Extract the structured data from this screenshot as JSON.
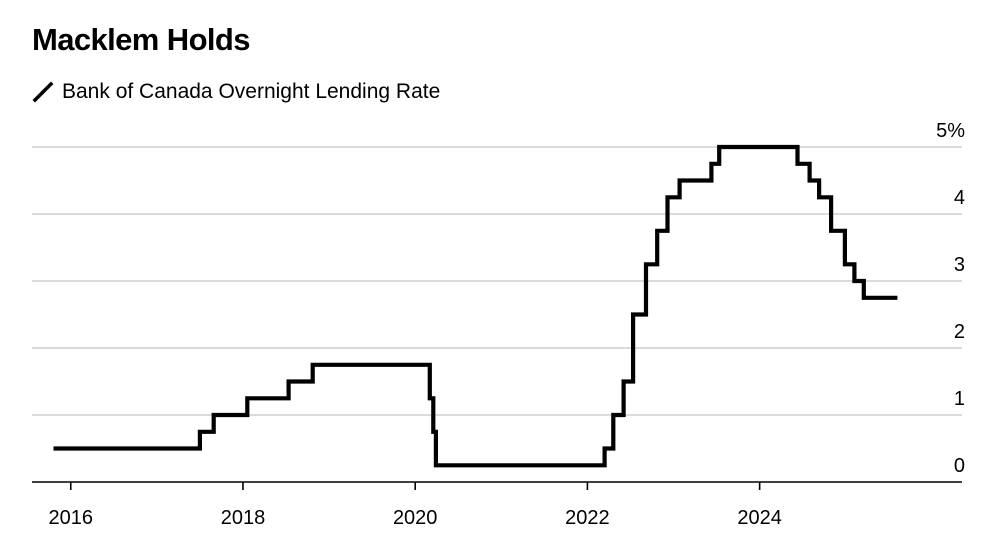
{
  "chart_data": {
    "type": "line",
    "title": "Macklem Holds",
    "series": [
      {
        "name": "Bank of Canada Overnight Lending Rate",
        "color": "#000000",
        "points": [
          [
            2015.8,
            0.5
          ],
          [
            2017.5,
            0.5
          ],
          [
            2017.5,
            0.75
          ],
          [
            2017.66,
            0.75
          ],
          [
            2017.66,
            1.0
          ],
          [
            2018.05,
            1.0
          ],
          [
            2018.05,
            1.25
          ],
          [
            2018.53,
            1.25
          ],
          [
            2018.53,
            1.5
          ],
          [
            2018.81,
            1.5
          ],
          [
            2018.81,
            1.75
          ],
          [
            2020.17,
            1.75
          ],
          [
            2020.17,
            1.25
          ],
          [
            2020.21,
            1.25
          ],
          [
            2020.21,
            0.75
          ],
          [
            2020.24,
            0.75
          ],
          [
            2020.24,
            0.25
          ],
          [
            2022.2,
            0.25
          ],
          [
            2022.2,
            0.5
          ],
          [
            2022.3,
            0.5
          ],
          [
            2022.3,
            1.0
          ],
          [
            2022.42,
            1.0
          ],
          [
            2022.42,
            1.5
          ],
          [
            2022.53,
            1.5
          ],
          [
            2022.53,
            2.5
          ],
          [
            2022.68,
            2.5
          ],
          [
            2022.68,
            3.25
          ],
          [
            2022.81,
            3.25
          ],
          [
            2022.81,
            3.75
          ],
          [
            2022.93,
            3.75
          ],
          [
            2022.93,
            4.25
          ],
          [
            2023.07,
            4.25
          ],
          [
            2023.07,
            4.5
          ],
          [
            2023.44,
            4.5
          ],
          [
            2023.44,
            4.75
          ],
          [
            2023.53,
            4.75
          ],
          [
            2023.53,
            5.0
          ],
          [
            2024.44,
            5.0
          ],
          [
            2024.44,
            4.75
          ],
          [
            2024.58,
            4.75
          ],
          [
            2024.58,
            4.5
          ],
          [
            2024.69,
            4.5
          ],
          [
            2024.69,
            4.25
          ],
          [
            2024.83,
            4.25
          ],
          [
            2024.83,
            3.75
          ],
          [
            2024.99,
            3.75
          ],
          [
            2024.99,
            3.25
          ],
          [
            2025.1,
            3.25
          ],
          [
            2025.1,
            3.0
          ],
          [
            2025.21,
            3.0
          ],
          [
            2025.21,
            2.75
          ],
          [
            2025.6,
            2.75
          ]
        ]
      }
    ],
    "x_ticks": [
      {
        "value": 2016,
        "label": "2016"
      },
      {
        "value": 2018,
        "label": "2018"
      },
      {
        "value": 2020,
        "label": "2020"
      },
      {
        "value": 2022,
        "label": "2022"
      },
      {
        "value": 2024,
        "label": "2024"
      }
    ],
    "y_ticks": [
      {
        "value": 0,
        "label": "0"
      },
      {
        "value": 1,
        "label": "1"
      },
      {
        "value": 2,
        "label": "2"
      },
      {
        "value": 3,
        "label": "3"
      },
      {
        "value": 4,
        "label": "4"
      },
      {
        "value": 5,
        "label": "5%"
      }
    ],
    "xlim": [
      2015.55,
      2026.35
    ],
    "ylim": [
      0,
      5
    ],
    "grid": true,
    "y_axis_side": "right",
    "legend_position": "top-left",
    "xlabel": "",
    "ylabel": ""
  }
}
